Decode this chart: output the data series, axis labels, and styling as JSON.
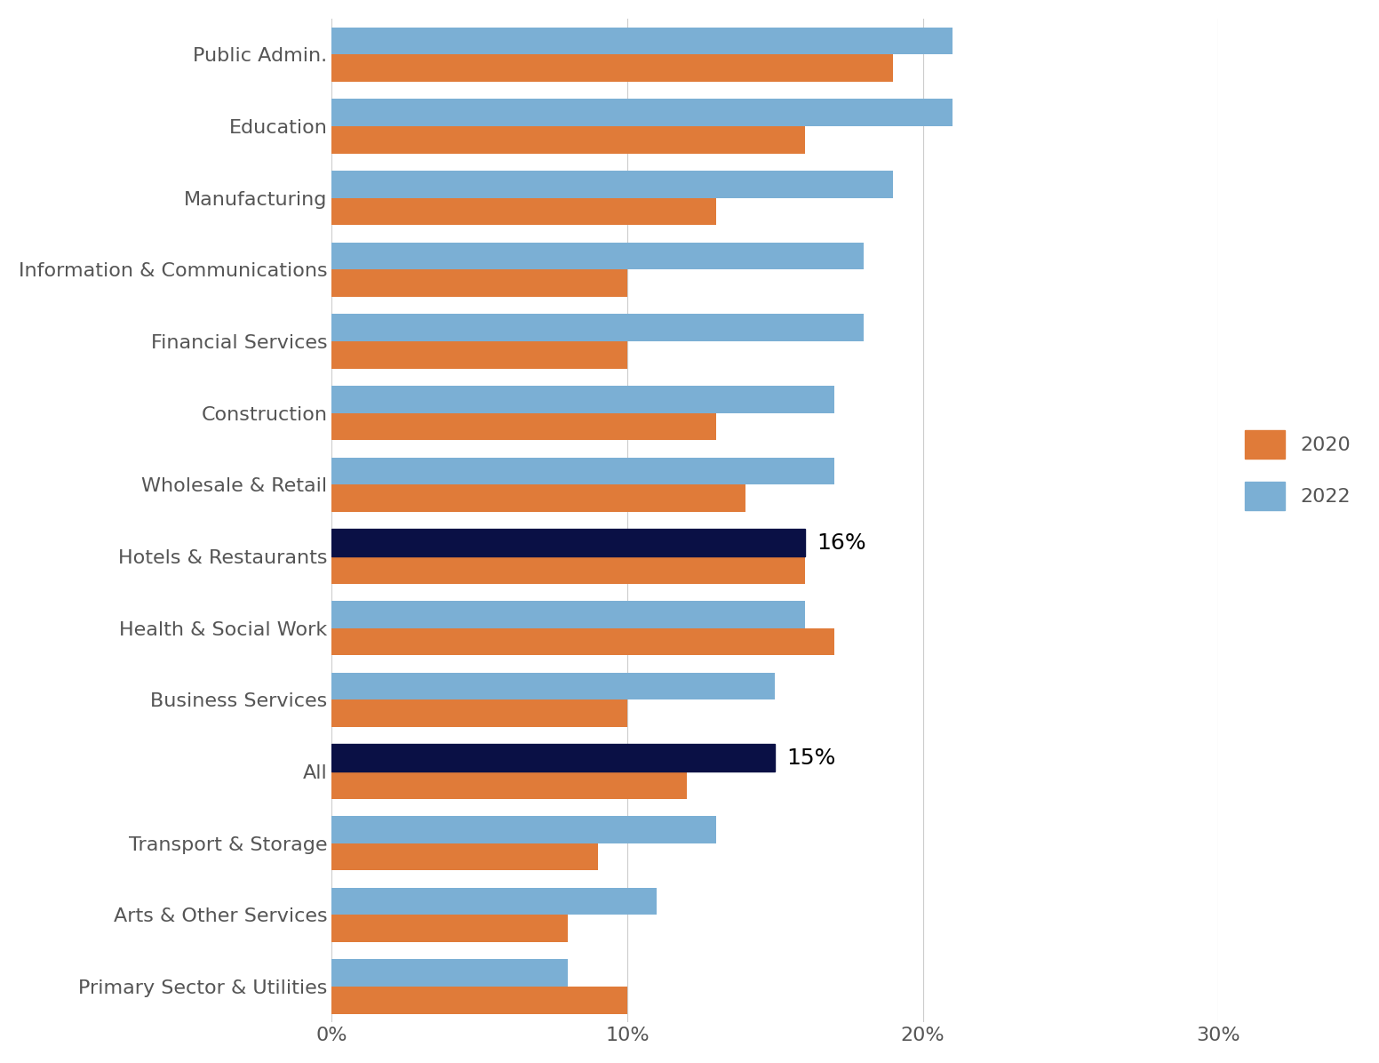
{
  "categories": [
    "Public Admin.",
    "Education",
    "Manufacturing",
    "Information & Communications",
    "Financial Services",
    "Construction",
    "Wholesale & Retail",
    "Hotels & Restaurants",
    "Health & Social Work",
    "Business Services",
    "All",
    "Transport & Storage",
    "Arts & Other Services",
    "Primary Sector & Utilities"
  ],
  "values_2020": [
    19,
    16,
    13,
    10,
    10,
    13,
    14,
    16,
    17,
    10,
    12,
    9,
    8,
    10
  ],
  "values_2022": [
    21,
    21,
    19,
    18,
    18,
    17,
    17,
    16,
    16,
    15,
    15,
    13,
    11,
    8
  ],
  "color_2020": "#E07B39",
  "color_2022": "#7BAFD4",
  "color_highlight": "#0A1045",
  "annotation_all": "15%",
  "annotation_hotels": "16%",
  "xlim": [
    0,
    30
  ],
  "xticks": [
    0,
    10,
    20,
    30
  ],
  "xticklabels": [
    "0%",
    "10%",
    "20%",
    "30%"
  ],
  "background_color": "#FFFFFF",
  "grid_color": "#CCCCCC",
  "label_fontsize": 16,
  "tick_fontsize": 16,
  "annotation_fontsize": 18,
  "legend_fontsize": 16,
  "bar_height": 0.38
}
